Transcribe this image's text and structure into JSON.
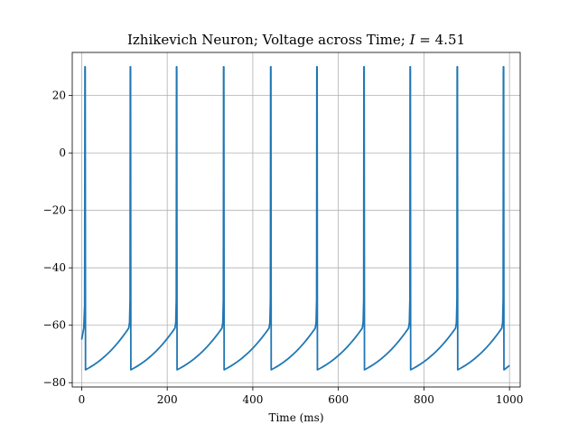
{
  "chart_data": {
    "type": "line",
    "title": "Izhikevich Neuron; Voltage across Time; ",
    "title_math": "I",
    "title_suffix": " = 4.51",
    "xlabel": "Time (ms)",
    "ylabel": "",
    "xlim": [
      -22,
      1025
    ],
    "ylim": [
      -81.5,
      35
    ],
    "xticks": [
      0,
      200,
      400,
      600,
      800,
      1000
    ],
    "yticks": [
      -80,
      -60,
      -40,
      -20,
      0,
      20
    ],
    "ytick_labels": [
      "−80",
      "−60",
      "−40",
      "−20",
      "0",
      "20"
    ],
    "grid": true,
    "line_color": "#1f77b4",
    "v_start": -65,
    "v_peak": 30,
    "v_reset": -75.5,
    "v_pre_spike": -61,
    "spike_times": [
      8,
      114,
      222,
      332,
      442,
      550,
      660,
      768,
      878,
      986
    ],
    "x_end": 1000,
    "v_end": -74
  }
}
